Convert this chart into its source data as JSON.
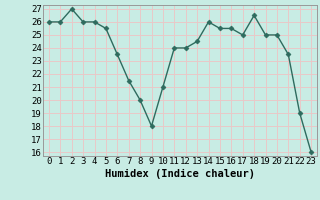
{
  "title": "",
  "xlabel": "Humidex (Indice chaleur)",
  "x": [
    0,
    1,
    2,
    3,
    4,
    5,
    6,
    7,
    8,
    9,
    10,
    11,
    12,
    13,
    14,
    15,
    16,
    17,
    18,
    19,
    20,
    21,
    22,
    23
  ],
  "y": [
    26,
    26,
    27,
    26,
    26,
    25.5,
    23.5,
    21.5,
    20,
    18,
    21,
    24,
    24,
    24.5,
    26,
    25.5,
    25.5,
    25,
    26.5,
    25,
    25,
    23.5,
    19,
    16
  ],
  "ylim_min": 15.7,
  "ylim_max": 27.3,
  "yticks": [
    16,
    17,
    18,
    19,
    20,
    21,
    22,
    23,
    24,
    25,
    26,
    27
  ],
  "line_color": "#2e6b5e",
  "marker": "D",
  "marker_size": 2.5,
  "bg_color": "#c8ece4",
  "grid_color": "#e8c8c8",
  "label_fontsize": 7.5,
  "tick_fontsize": 6.5
}
